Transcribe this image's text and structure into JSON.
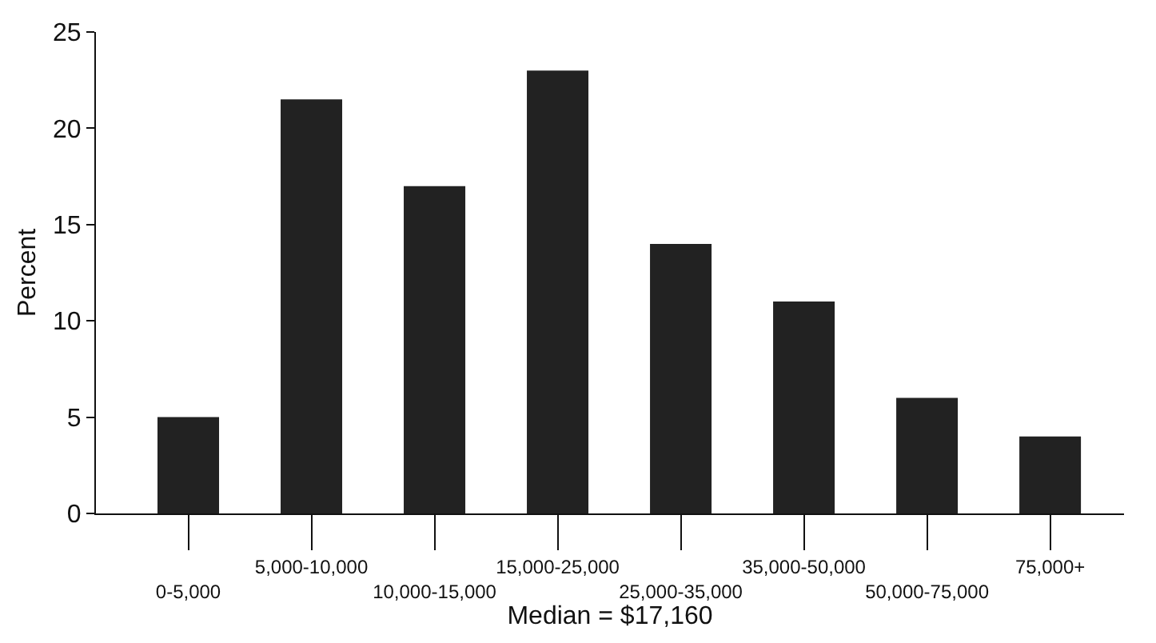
{
  "chart_data": {
    "type": "bar",
    "xlabel": "Median = $17,160",
    "ylabel": "Percent",
    "categories": [
      "0-5,000",
      "5,000-10,000",
      "10,000-15,000",
      "15,000-25,000",
      "25,000-35,000",
      "35,000-50,000",
      "50,000-75,000",
      "75,000+"
    ],
    "values": [
      5,
      21.5,
      17,
      23,
      14,
      11,
      6,
      4
    ],
    "color": "#222222",
    "ylim": [
      0,
      25
    ],
    "yticks": [
      0,
      5,
      10,
      15,
      20,
      25
    ],
    "legend": false
  }
}
